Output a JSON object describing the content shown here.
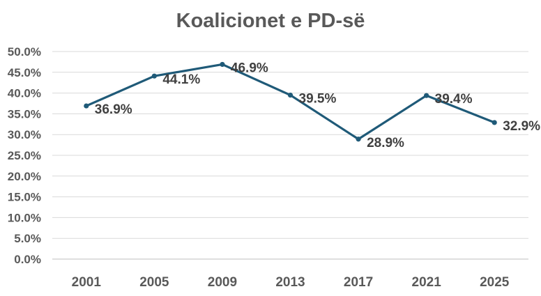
{
  "chart_data": {
    "type": "line",
    "title": "Koalicionet e PD-së",
    "xlabel": "",
    "ylabel": "",
    "categories": [
      "2001",
      "2005",
      "2009",
      "2013",
      "2017",
      "2021",
      "2025"
    ],
    "series": [
      {
        "values": [
          36.9,
          44.1,
          46.9,
          39.5,
          28.9,
          39.4,
          32.9
        ],
        "data_labels": [
          "36.9%",
          "44.1%",
          "46.9%",
          "39.5%",
          "28.9%",
          "39.4%",
          "32.9%"
        ],
        "color": "#1f5a78"
      }
    ],
    "ylim": [
      0,
      50
    ],
    "yticks": [
      0,
      5,
      10,
      15,
      20,
      25,
      30,
      35,
      40,
      45,
      50
    ],
    "ytick_labels": [
      "0.0%",
      "5.0%",
      "10.0%",
      "15.0%",
      "20.0%",
      "25.0%",
      "30.0%",
      "35.0%",
      "40.0%",
      "45.0%",
      "50.0%"
    ],
    "grid": true,
    "legend": "none"
  }
}
